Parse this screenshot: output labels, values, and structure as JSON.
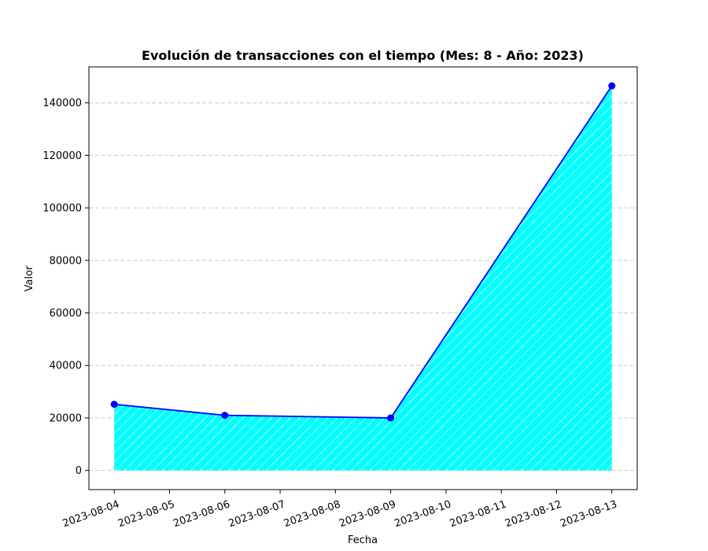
{
  "chart_data": {
    "type": "area",
    "title": "Evolución de transacciones con el tiempo (Mes: 8 - Año: 2023)",
    "xlabel": "Fecha",
    "ylabel": "Valor",
    "x_ticks": [
      "2023-08-04",
      "2023-08-05",
      "2023-08-06",
      "2023-08-07",
      "2023-08-08",
      "2023-08-09",
      "2023-08-10",
      "2023-08-11",
      "2023-08-12",
      "2023-08-13"
    ],
    "y_ticks": [
      0,
      20000,
      40000,
      60000,
      80000,
      100000,
      120000,
      140000
    ],
    "xlim": [
      "2023-08-03T13:00",
      "2023-08-13T11:00"
    ],
    "ylim": [
      -7300,
      153700
    ],
    "grid": "y-dashed",
    "series": [
      {
        "x": [
          "2023-08-04",
          "2023-08-06",
          "2023-08-09",
          "2023-08-13"
        ],
        "values": [
          25200,
          21000,
          20000,
          146500
        ]
      }
    ],
    "colors": {
      "line": "#0000ff",
      "marker": "#0000ff",
      "fill": "#00ffff",
      "hatch": "#ffffff"
    }
  }
}
